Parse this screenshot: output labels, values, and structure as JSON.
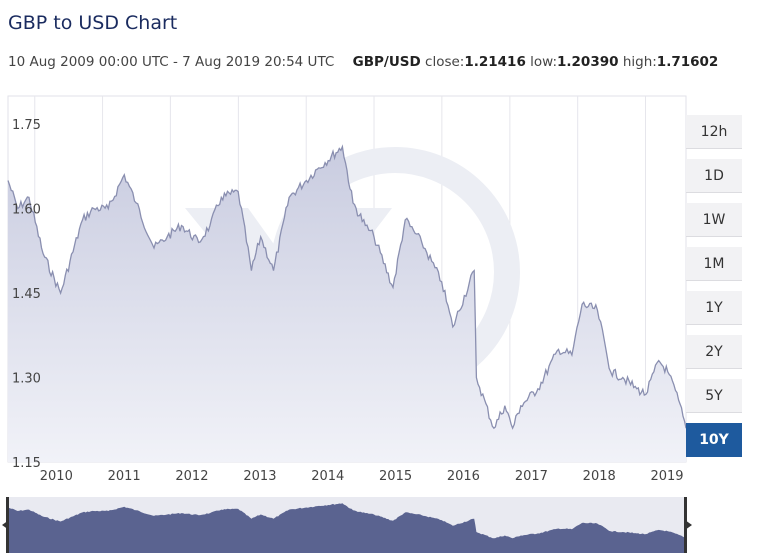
{
  "header": {
    "title": "GBP to USD Chart",
    "range_text": "10 Aug 2009 00:00 UTC - 7 Aug 2019 20:54 UTC",
    "pair": "GBP/USD",
    "close_label": "close:",
    "close_value": "1.21416",
    "low_label": "low:",
    "low_value": "1.20390",
    "high_label": "high:",
    "high_value": "1.71602"
  },
  "range_buttons": [
    {
      "label": "12h",
      "active": false
    },
    {
      "label": "1D",
      "active": false
    },
    {
      "label": "1W",
      "active": false
    },
    {
      "label": "1M",
      "active": false
    },
    {
      "label": "1Y",
      "active": false
    },
    {
      "label": "2Y",
      "active": false
    },
    {
      "label": "5Y",
      "active": false
    },
    {
      "label": "10Y",
      "active": true
    }
  ],
  "colors": {
    "line": "#8a8fb0",
    "fill_top": "#c9cce0",
    "fill_bottom": "#f1f2f8",
    "navigator": "#5a6390",
    "active_button": "#1e5a9e",
    "watermark": "#eceef4"
  },
  "watermark_icon": "xe-logo-icon",
  "chart_data": {
    "type": "area",
    "series": [
      {
        "name": "GBP/USD",
        "x": [
          "2009-08-10",
          "2009-10-01",
          "2009-12-01",
          "2010-02-15",
          "2010-05-20",
          "2010-09-15",
          "2010-11-15",
          "2011-02-01",
          "2011-04-28",
          "2011-07-01",
          "2011-10-05",
          "2011-12-15",
          "2012-03-01",
          "2012-06-01",
          "2012-08-01",
          "2012-10-01",
          "2012-12-31",
          "2013-03-12",
          "2013-05-01",
          "2013-07-09",
          "2013-10-01",
          "2014-01-02",
          "2014-03-01",
          "2014-07-15",
          "2014-09-10",
          "2014-11-15",
          "2015-01-01",
          "2015-04-13",
          "2015-06-18",
          "2015-09-15",
          "2015-12-31",
          "2016-02-29",
          "2016-06-23",
          "2016-07-05",
          "2016-10-07",
          "2016-12-05",
          "2017-01-16",
          "2017-03-01",
          "2017-06-01",
          "2017-09-20",
          "2017-12-01",
          "2018-01-25",
          "2018-04-17",
          "2018-06-28",
          "2018-09-01",
          "2018-11-15",
          "2019-01-03",
          "2019-03-13",
          "2019-05-01",
          "2019-06-28",
          "2019-08-07"
        ],
        "y": [
          1.65,
          1.6,
          1.62,
          1.52,
          1.45,
          1.58,
          1.6,
          1.6,
          1.66,
          1.61,
          1.53,
          1.55,
          1.57,
          1.54,
          1.57,
          1.62,
          1.63,
          1.49,
          1.55,
          1.49,
          1.62,
          1.65,
          1.67,
          1.71,
          1.61,
          1.57,
          1.55,
          1.46,
          1.58,
          1.54,
          1.47,
          1.39,
          1.49,
          1.3,
          1.21,
          1.25,
          1.21,
          1.25,
          1.28,
          1.35,
          1.34,
          1.43,
          1.42,
          1.31,
          1.3,
          1.28,
          1.27,
          1.33,
          1.31,
          1.26,
          1.21
        ]
      }
    ],
    "xlim": [
      "2009-08-10",
      "2019-08-07"
    ],
    "ylim": [
      1.15,
      1.8
    ],
    "yticks": [
      "1.75",
      "1.60",
      "1.45",
      "1.30",
      "1.15"
    ],
    "ytick_values": [
      1.75,
      1.6,
      1.45,
      1.3,
      1.15
    ],
    "xticks": [
      "2010",
      "2011",
      "2012",
      "2013",
      "2014",
      "2015",
      "2016",
      "2017",
      "2018",
      "2019"
    ],
    "xtick_dates": [
      "2010-01-01",
      "2011-01-01",
      "2012-01-01",
      "2013-01-01",
      "2014-01-01",
      "2015-01-01",
      "2016-01-01",
      "2017-01-01",
      "2018-01-01",
      "2019-01-01"
    ],
    "grid": true,
    "navigator": true
  }
}
